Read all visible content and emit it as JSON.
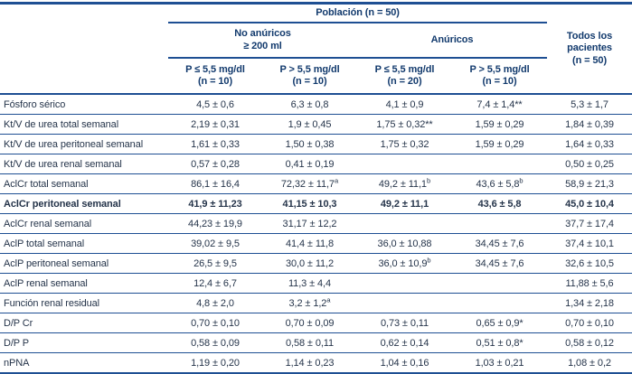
{
  "colors": {
    "rule": "#1e4f93",
    "header_text": "#123a6d",
    "body_text": "#25344a"
  },
  "table": {
    "population_header": "Población (n = 50)",
    "group_no_anuricos": {
      "line1": "No anúricos",
      "line2": "≥ 200 ml"
    },
    "group_anuricos": "Anúricos",
    "todos": {
      "line1": "Todos los",
      "line2": "pacientes",
      "line3": "(n = 50)"
    },
    "columns": [
      {
        "line1": "P ≤ 5,5 mg/dl",
        "line2": "(n = 10)"
      },
      {
        "line1": "P > 5,5 mg/dl",
        "line2": "(n = 10)"
      },
      {
        "line1": "P ≤ 5,5 mg/dl",
        "line2": "(n = 20)"
      },
      {
        "line1": "P > 5,5 mg/dl",
        "line2": "(n = 10)"
      }
    ],
    "rows": [
      {
        "label": "Fósforo sérico",
        "bold": false,
        "cells": [
          "4,5 ± 0,6",
          "6,3 ± 0,8",
          "4,1 ± 0,9",
          "7,4 ± 1,4**",
          "5,3 ± 1,7"
        ]
      },
      {
        "label": "Kt/V de urea total semanal",
        "bold": false,
        "cells": [
          "2,19 ± 0,31",
          "1,9 ± 0,45",
          "1,75 ± 0,32**",
          "1,59 ± 0,29",
          "1,84 ± 0,39"
        ]
      },
      {
        "label": "Kt/V de urea peritoneal semanal",
        "bold": false,
        "cells": [
          "1,61 ± 0,33",
          "1,50 ± 0,38",
          "1,75 ± 0,32",
          "1,59 ± 0,29",
          "1,64 ± 0,33"
        ]
      },
      {
        "label": "Kt/V de urea renal semanal",
        "bold": false,
        "cells": [
          "0,57 ± 0,28",
          "0,41 ± 0,19",
          "",
          "",
          "0,50 ± 0,25"
        ]
      },
      {
        "label": "AclCr total semanal",
        "bold": false,
        "cells": [
          "86,1 ± 16,4",
          "72,32 ± 11,7^a",
          "49,2 ± 11,1^b",
          "43,6 ± 5,8^b",
          "58,9 ± 21,3"
        ]
      },
      {
        "label": "AclCr peritoneal semanal",
        "bold": true,
        "cells": [
          "41,9 ± 11,23",
          "41,15 ± 10,3",
          "49,2 ± 11,1",
          "43,6 ± 5,8",
          "45,0 ± 10,4"
        ]
      },
      {
        "label": "AclCr renal semanal",
        "bold": false,
        "cells": [
          "44,23 ± 19,9",
          "31,17 ± 12,2",
          "",
          "",
          "37,7 ± 17,4"
        ]
      },
      {
        "label": "AclP total semanal",
        "bold": false,
        "cells": [
          "39,02 ± 9,5",
          "41,4 ± 11,8",
          "36,0 ± 10,88",
          "34,45 ± 7,6",
          "37,4 ± 10,1"
        ]
      },
      {
        "label": "AclP peritoneal semanal",
        "bold": false,
        "cells": [
          "26,5 ± 9,5",
          "30,0 ± 11,2",
          "36,0 ± 10,9^b",
          "34,45 ± 7,6",
          "32,6 ± 10,5"
        ]
      },
      {
        "label": "AclP renal semanal",
        "bold": false,
        "cells": [
          "12,4 ± 6,7",
          "11,3 ± 4,4",
          "",
          "",
          "11,88 ± 5,6"
        ]
      },
      {
        "label": "Función renal residual",
        "bold": false,
        "cells": [
          "4,8 ± 2,0",
          "3,2 ± 1,2^a",
          "",
          "",
          "1,34 ± 2,18"
        ]
      },
      {
        "label": "D/P Cr",
        "bold": false,
        "cells": [
          "0,70 ± 0,10",
          "0,70 ± 0,09",
          "0,73 ± 0,11",
          "0,65 ± 0,9*",
          "0,70 ± 0,10"
        ]
      },
      {
        "label": "D/P P",
        "bold": false,
        "cells": [
          "0,58 ± 0,09",
          "0,58 ± 0,11",
          "0,62 ± 0,14",
          "0,51 ± 0,8*",
          "0,58 ± 0,12"
        ]
      },
      {
        "label": "nPNA",
        "bold": false,
        "cells": [
          "1,19 ± 0,20",
          "1,14 ± 0,23",
          "1,04 ± 0,16",
          "1,03 ± 0,21",
          "1,08 ± 0,2"
        ]
      }
    ]
  }
}
